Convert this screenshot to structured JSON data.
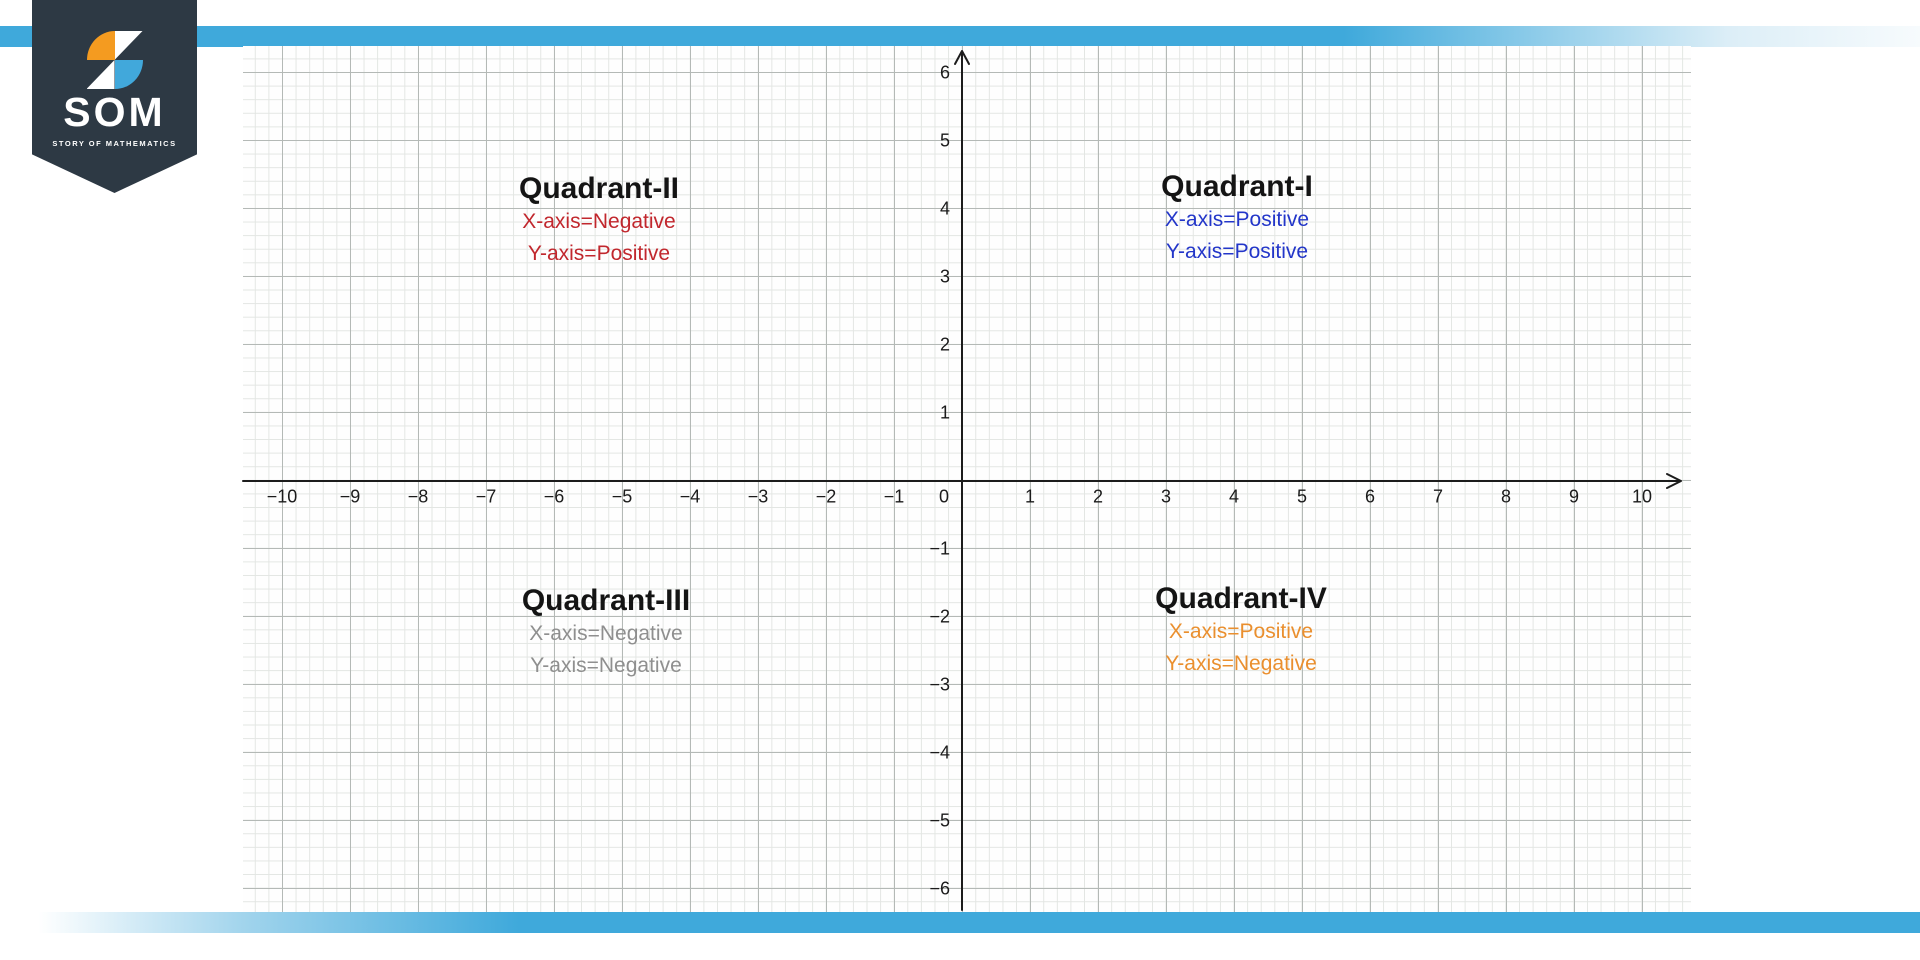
{
  "logo": {
    "acronym": "SOM",
    "tagline": "STORY OF MATHEMATICS"
  },
  "theme": {
    "bar_color": "#3fa9db",
    "banner_color": "#2d3944",
    "icon_orange": "#f49b20",
    "icon_blue": "#41a8db",
    "axis_color": "#1c1c1c",
    "major_grid_color": "#b4b9b6",
    "minor_grid_color": "#e3e6e3"
  },
  "plane": {
    "x_range": [
      -10,
      10
    ],
    "y_range": [
      -6,
      6
    ],
    "x_ticks": [
      -10,
      -9,
      -8,
      -7,
      -6,
      -5,
      -4,
      -3,
      -2,
      -1,
      0,
      1,
      2,
      3,
      4,
      5,
      6,
      7,
      8,
      9,
      10
    ],
    "y_ticks": [
      6,
      5,
      4,
      3,
      2,
      1,
      -1,
      -2,
      -3,
      -4,
      -5,
      -6
    ],
    "grid": "on",
    "minor_divisions_per_unit": 5
  },
  "quadrants": [
    {
      "title": "Quadrant-II",
      "line1": "X-axis=Negative",
      "line2": "Y-axis=Positive",
      "color": "#c1272d"
    },
    {
      "title": "Quadrant-I",
      "line1": "X-axis=Positive",
      "line2": "Y-axis=Positive",
      "color": "#2336c9"
    },
    {
      "title": "Quadrant-III",
      "line1": "X-axis=Negative",
      "line2": "Y-axis=Negative",
      "color": "#8f8f8f"
    },
    {
      "title": "Quadrant-IV",
      "line1": "X-axis=Positive",
      "line2": "Y-axis=Negative",
      "color": "#ea8f2e"
    }
  ]
}
